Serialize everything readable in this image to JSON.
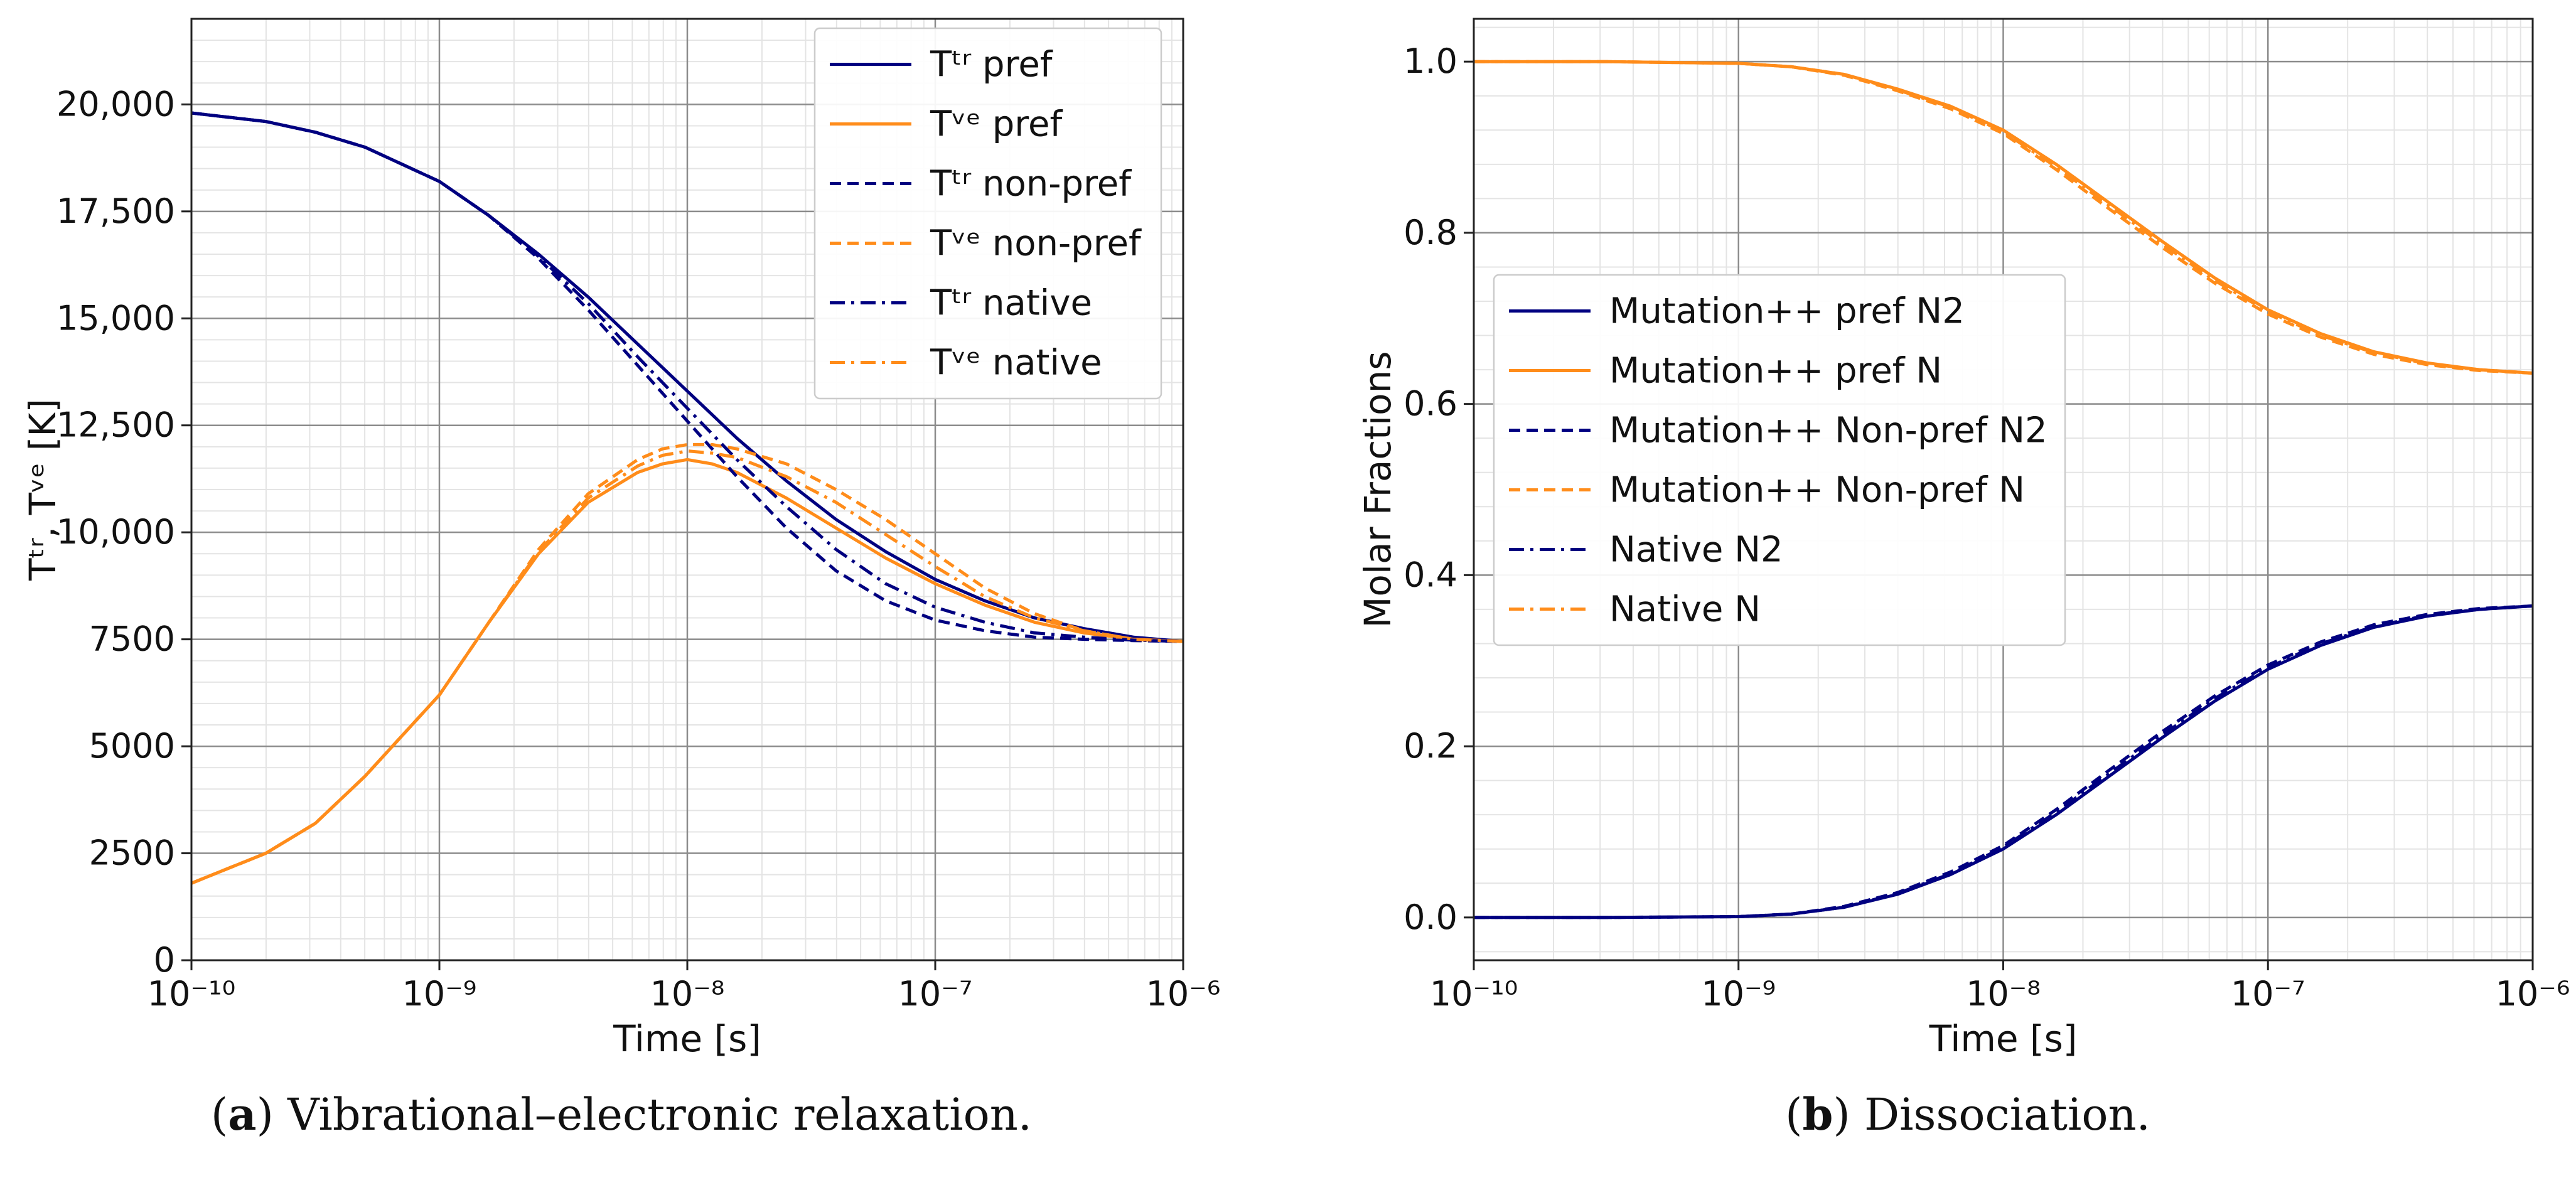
{
  "chart_data": [
    {
      "id": "a",
      "type": "line",
      "caption_letter": "a",
      "caption": "Vibrational–electronic relaxation.",
      "xscale": "log",
      "xlim": [
        1e-10,
        1e-06
      ],
      "ylim": [
        0,
        22000
      ],
      "xlabel": "Time [s]",
      "ylabel": "Tᵗʳ, Tᵛᵉ [K]",
      "xtick_labels": [
        "10⁻¹⁰",
        "10⁻⁹",
        "10⁻⁸",
        "10⁻⁷",
        "10⁻⁶"
      ],
      "ytick_labels": [
        "0",
        "2500",
        "5000",
        "7500",
        "10,000",
        "12,500",
        "15,000",
        "17,500",
        "20,000"
      ],
      "grid": true,
      "legend_position": "top-right",
      "series": [
        {
          "name": "Tᵗʳ pref",
          "color": "#000080",
          "dash": "solid",
          "x": [
            -10,
            -9.7,
            -9.5,
            -9.3,
            -9,
            -8.8,
            -8.6,
            -8.4,
            -8.2,
            -8,
            -7.8,
            -7.6,
            -7.4,
            -7.2,
            -7,
            -6.8,
            -6.6,
            -6.4,
            -6.2,
            -6
          ],
          "y": [
            19800,
            19600,
            19350,
            19000,
            18200,
            17400,
            16500,
            15500,
            14400,
            13300,
            12200,
            11200,
            10300,
            9550,
            8900,
            8400,
            8000,
            7750,
            7550,
            7450
          ]
        },
        {
          "name": "Tᵛᵉ pref",
          "color": "#ff8c1a",
          "dash": "solid",
          "x": [
            -10,
            -9.7,
            -9.5,
            -9.3,
            -9,
            -8.8,
            -8.6,
            -8.4,
            -8.2,
            -8.1,
            -8,
            -7.9,
            -7.8,
            -7.6,
            -7.4,
            -7.2,
            -7,
            -6.8,
            -6.6,
            -6.4,
            -6.2,
            -6
          ],
          "y": [
            1800,
            2500,
            3200,
            4300,
            6200,
            7900,
            9500,
            10700,
            11400,
            11600,
            11700,
            11600,
            11400,
            10800,
            10100,
            9400,
            8800,
            8300,
            7900,
            7650,
            7500,
            7450
          ]
        },
        {
          "name": "Tᵗʳ non-pref",
          "color": "#000080",
          "dash": "dashed",
          "x": [
            -10,
            -9.7,
            -9.5,
            -9.3,
            -9,
            -8.8,
            -8.6,
            -8.4,
            -8.2,
            -8,
            -7.8,
            -7.6,
            -7.4,
            -7.2,
            -7,
            -6.8,
            -6.6,
            -6.4,
            -6.2,
            -6
          ],
          "y": [
            19800,
            19600,
            19350,
            19000,
            18200,
            17400,
            16400,
            15200,
            13900,
            12600,
            11300,
            10100,
            9100,
            8400,
            7950,
            7700,
            7550,
            7500,
            7470,
            7450
          ]
        },
        {
          "name": "Tᵛᵉ non-pref",
          "color": "#ff8c1a",
          "dash": "dashed",
          "x": [
            -10,
            -9.7,
            -9.5,
            -9.3,
            -9,
            -8.8,
            -8.6,
            -8.4,
            -8.2,
            -8.1,
            -8,
            -7.9,
            -7.8,
            -7.6,
            -7.4,
            -7.2,
            -7,
            -6.8,
            -6.6,
            -6.4,
            -6.2,
            -6
          ],
          "y": [
            1800,
            2500,
            3200,
            4300,
            6200,
            7900,
            9600,
            10900,
            11700,
            11950,
            12050,
            12050,
            11950,
            11600,
            11000,
            10300,
            9500,
            8700,
            8100,
            7700,
            7500,
            7450
          ]
        },
        {
          "name": "Tᵗʳ native",
          "color": "#000080",
          "dash": "dashdot",
          "x": [
            -10,
            -9.7,
            -9.5,
            -9.3,
            -9,
            -8.8,
            -8.6,
            -8.4,
            -8.2,
            -8,
            -7.8,
            -7.6,
            -7.4,
            -7.2,
            -7,
            -6.8,
            -6.6,
            -6.4,
            -6.2,
            -6
          ],
          "y": [
            19800,
            19600,
            19350,
            19000,
            18200,
            17400,
            16450,
            15350,
            14100,
            12900,
            11700,
            10600,
            9600,
            8800,
            8250,
            7900,
            7650,
            7550,
            7480,
            7450
          ]
        },
        {
          "name": "Tᵛᵉ native",
          "color": "#ff8c1a",
          "dash": "dashdot",
          "x": [
            -10,
            -9.7,
            -9.5,
            -9.3,
            -9,
            -8.8,
            -8.6,
            -8.4,
            -8.2,
            -8.1,
            -8,
            -7.9,
            -7.8,
            -7.6,
            -7.4,
            -7.2,
            -7,
            -6.8,
            -6.6,
            -6.4,
            -6.2,
            -6
          ],
          "y": [
            1800,
            2500,
            3200,
            4300,
            6200,
            7900,
            9550,
            10800,
            11550,
            11800,
            11900,
            11850,
            11750,
            11300,
            10700,
            9950,
            9200,
            8500,
            8000,
            7700,
            7500,
            7450
          ]
        }
      ]
    },
    {
      "id": "b",
      "type": "line",
      "caption_letter": "b",
      "caption": "Dissociation.",
      "xscale": "log",
      "xlim": [
        1e-10,
        1e-06
      ],
      "ylim": [
        -0.05,
        1.05
      ],
      "xlabel": "Time [s]",
      "ylabel": "Molar Fractions",
      "xtick_labels": [
        "10⁻¹⁰",
        "10⁻⁹",
        "10⁻⁸",
        "10⁻⁷",
        "10⁻⁶"
      ],
      "ytick_labels": [
        "0.0",
        "0.2",
        "0.4",
        "0.6",
        "0.8",
        "1.0"
      ],
      "grid": true,
      "legend_position": "center-left",
      "series": [
        {
          "name": "Mutation++ pref N2",
          "color": "#000080",
          "dash": "solid",
          "x": [
            -10,
            -9.5,
            -9,
            -8.8,
            -8.6,
            -8.4,
            -8.2,
            -8,
            -7.8,
            -7.6,
            -7.4,
            -7.2,
            -7,
            -6.8,
            -6.6,
            -6.4,
            -6.2,
            -6
          ],
          "y": [
            0,
            0,
            0.001,
            0.004,
            0.012,
            0.027,
            0.05,
            0.08,
            0.12,
            0.165,
            0.21,
            0.253,
            0.29,
            0.318,
            0.339,
            0.352,
            0.36,
            0.364
          ]
        },
        {
          "name": "Mutation++ pref N",
          "color": "#ff8c1a",
          "dash": "solid",
          "x": [
            -10,
            -9.5,
            -9,
            -8.8,
            -8.6,
            -8.4,
            -8.2,
            -8,
            -7.8,
            -7.6,
            -7.4,
            -7.2,
            -7,
            -6.8,
            -6.6,
            -6.4,
            -6.2,
            -6
          ],
          "y": [
            1.0,
            1.0,
            0.998,
            0.994,
            0.985,
            0.968,
            0.948,
            0.92,
            0.88,
            0.835,
            0.79,
            0.747,
            0.71,
            0.682,
            0.661,
            0.648,
            0.64,
            0.636
          ]
        },
        {
          "name": "Mutation++ Non-pref N2",
          "color": "#000080",
          "dash": "dashed",
          "x": [
            -10,
            -9.5,
            -9,
            -8.8,
            -8.6,
            -8.4,
            -8.2,
            -8,
            -7.8,
            -7.6,
            -7.4,
            -7.2,
            -7,
            -6.8,
            -6.6,
            -6.4,
            -6.2,
            -6
          ],
          "y": [
            0,
            0,
            0.001,
            0.004,
            0.013,
            0.029,
            0.053,
            0.084,
            0.126,
            0.172,
            0.217,
            0.259,
            0.295,
            0.322,
            0.342,
            0.354,
            0.361,
            0.364
          ]
        },
        {
          "name": "Mutation++ Non-pref N",
          "color": "#ff8c1a",
          "dash": "dashed",
          "x": [
            -10,
            -9.5,
            -9,
            -8.8,
            -8.6,
            -8.4,
            -8.2,
            -8,
            -7.8,
            -7.6,
            -7.4,
            -7.2,
            -7,
            -6.8,
            -6.6,
            -6.4,
            -6.2,
            -6
          ],
          "y": [
            1.0,
            1.0,
            0.998,
            0.994,
            0.984,
            0.966,
            0.945,
            0.916,
            0.874,
            0.828,
            0.783,
            0.741,
            0.705,
            0.678,
            0.658,
            0.646,
            0.639,
            0.636
          ]
        },
        {
          "name": "Native N2",
          "color": "#000080",
          "dash": "dashdot",
          "x": [
            -10,
            -9.5,
            -9,
            -8.8,
            -8.6,
            -8.4,
            -8.2,
            -8,
            -7.8,
            -7.6,
            -7.4,
            -7.2,
            -7,
            -6.8,
            -6.6,
            -6.4,
            -6.2,
            -6
          ],
          "y": [
            0,
            0,
            0.001,
            0.004,
            0.012,
            0.028,
            0.051,
            0.082,
            0.123,
            0.168,
            0.213,
            0.256,
            0.292,
            0.32,
            0.34,
            0.353,
            0.36,
            0.364
          ]
        },
        {
          "name": "Native N",
          "color": "#ff8c1a",
          "dash": "dashdot",
          "x": [
            -10,
            -9.5,
            -9,
            -8.8,
            -8.6,
            -8.4,
            -8.2,
            -8,
            -7.8,
            -7.6,
            -7.4,
            -7.2,
            -7,
            -6.8,
            -6.6,
            -6.4,
            -6.2,
            -6
          ],
          "y": [
            1.0,
            1.0,
            0.998,
            0.994,
            0.985,
            0.967,
            0.947,
            0.918,
            0.877,
            0.832,
            0.787,
            0.744,
            0.708,
            0.68,
            0.66,
            0.647,
            0.64,
            0.636
          ]
        }
      ]
    }
  ]
}
